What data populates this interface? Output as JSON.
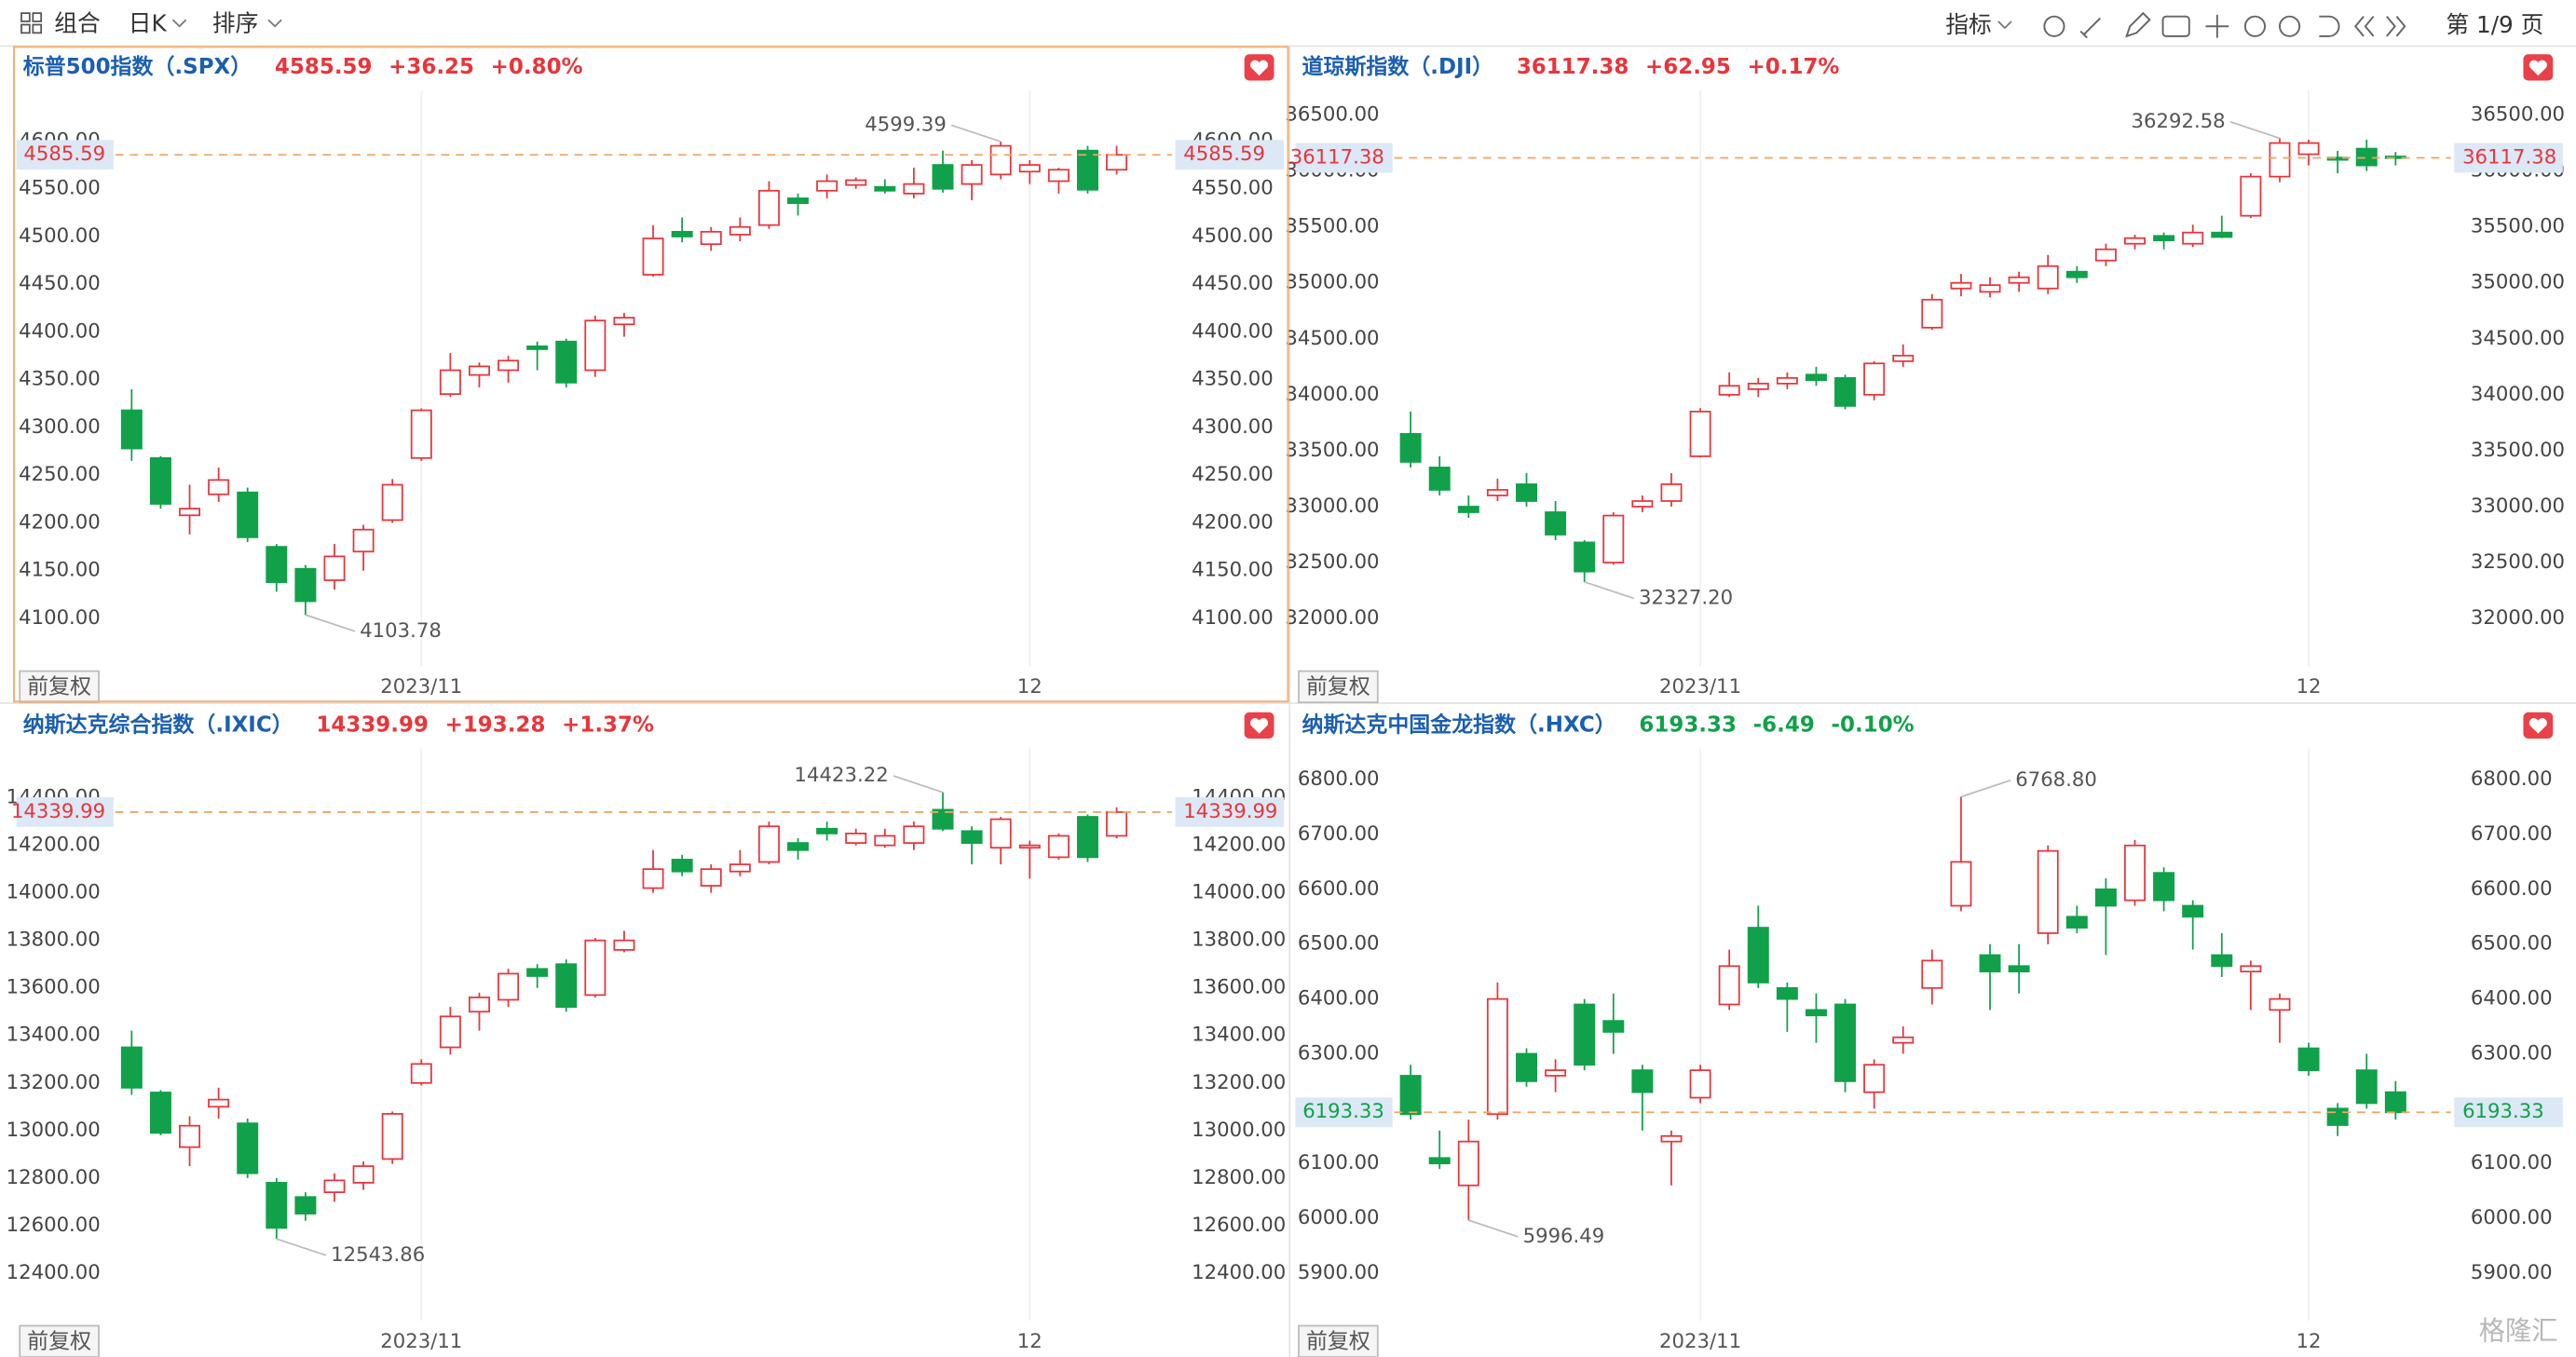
{
  "toolbar": {
    "group": "组合",
    "period": "日K",
    "sort": "排序",
    "indicator": "指标",
    "page": "第 1/9 页"
  },
  "watermark": "格隆汇",
  "chart_data": [
    {
      "type": "candlestick",
      "title": "标普500指数（.SPX）",
      "last": 4585.59,
      "change": "+36.25",
      "change_pct": "+0.80%",
      "quote_color": "#e8353b",
      "adjust": "前复权",
      "up_color": "#e8353b",
      "down_color": "#10a14a",
      "categories": [
        null,
        null,
        null,
        null,
        null,
        null,
        null,
        null,
        null,
        null,
        "2023/11",
        null,
        null,
        null,
        null,
        null,
        null,
        null,
        null,
        null,
        null,
        null,
        null,
        null,
        null,
        null,
        null,
        null,
        null,
        null,
        null,
        "12",
        null,
        null,
        null
      ],
      "open": [
        4318,
        4268,
        4208,
        4230,
        4232,
        4175,
        4152,
        4140,
        4170,
        4203,
        4268,
        4335,
        4355,
        4360,
        4385,
        4390,
        4360,
        4408,
        4460,
        4505,
        4492,
        4502,
        4512,
        4540,
        4548,
        4554,
        4552,
        4545,
        4575,
        4555,
        4565,
        4568,
        4558,
        4590,
        4570
      ],
      "high": [
        4340,
        4270,
        4240,
        4258,
        4237,
        4178,
        4156,
        4178,
        4198,
        4246,
        4320,
        4378,
        4368,
        4375,
        4390,
        4393,
        4417,
        4420,
        4512,
        4520,
        4510,
        4520,
        4558,
        4545,
        4565,
        4562,
        4560,
        4572,
        4590,
        4580,
        4599.39,
        4580,
        4572,
        4595,
        4595
      ],
      "low": [
        4265,
        4215,
        4188,
        4222,
        4180,
        4128,
        4103.78,
        4130,
        4150,
        4200,
        4265,
        4332,
        4342,
        4347,
        4360,
        4342,
        4353,
        4395,
        4458,
        4494,
        4485,
        4495,
        4508,
        4522,
        4540,
        4550,
        4545,
        4540,
        4546,
        4538,
        4560,
        4555,
        4545,
        4545,
        4565
      ],
      "close": [
        4278,
        4220,
        4215,
        4245,
        4185,
        4138,
        4118,
        4165,
        4193,
        4240,
        4318,
        4360,
        4364,
        4370,
        4382,
        4347,
        4412,
        4415,
        4498,
        4500,
        4505,
        4510,
        4548,
        4535,
        4558,
        4559,
        4548,
        4555,
        4550,
        4575,
        4595,
        4575,
        4570,
        4549,
        4585.59
      ],
      "ylim": [
        4050,
        4653
      ],
      "yticks": [
        {
          "value": 4100,
          "label": "4100.00"
        },
        {
          "value": 4150,
          "label": "4150.00"
        },
        {
          "value": 4200,
          "label": "4200.00"
        },
        {
          "value": 4250,
          "label": "4250.00"
        },
        {
          "value": 4300,
          "label": "4300.00"
        },
        {
          "value": 4350,
          "label": "4350.00"
        },
        {
          "value": 4400,
          "label": "4400.00"
        },
        {
          "value": 4450,
          "label": "4450.00"
        },
        {
          "value": 4500,
          "label": "4500.00"
        },
        {
          "value": 4550,
          "label": "4550.00"
        },
        {
          "value": 4600,
          "label": "4600.00"
        }
      ],
      "annotations": [
        {
          "value": 4599.39,
          "label": "4599.39"
        },
        {
          "value": 4103.78,
          "label": "4103.78"
        }
      ]
    },
    {
      "type": "candlestick",
      "title": "道琼斯指数（.DJI）",
      "last": 36117.38,
      "change": "+62.95",
      "change_pct": "+0.17%",
      "quote_color": "#e8353b",
      "adjust": "前复权",
      "up_color": "#e8353b",
      "down_color": "#10a14a",
      "categories": [
        null,
        null,
        null,
        null,
        null,
        null,
        null,
        null,
        null,
        null,
        "2023/11",
        null,
        null,
        null,
        null,
        null,
        null,
        null,
        null,
        null,
        null,
        null,
        null,
        null,
        null,
        null,
        null,
        null,
        null,
        null,
        null,
        "12",
        null,
        null,
        null
      ],
      "open": [
        33650,
        33350,
        33000,
        33100,
        33200,
        32950,
        32680,
        32500,
        33000,
        33050,
        33450,
        34000,
        34050,
        34100,
        34180,
        34150,
        34000,
        34300,
        34600,
        34950,
        34920,
        35000,
        34950,
        35100,
        35200,
        35350,
        35420,
        35350,
        35450,
        35600,
        35950,
        36150,
        36120,
        36200,
        36130
      ],
      "high": [
        33850,
        33450,
        33100,
        33250,
        33300,
        33050,
        32700,
        32950,
        33100,
        33300,
        33880,
        34200,
        34150,
        34200,
        34250,
        34180,
        34300,
        34450,
        34900,
        35080,
        35050,
        35100,
        35250,
        35150,
        35350,
        35430,
        35450,
        35520,
        35600,
        35980,
        36292.58,
        36280,
        36180,
        36280,
        36170
      ],
      "low": [
        33350,
        33100,
        32900,
        33050,
        33000,
        32700,
        32327.2,
        32480,
        32950,
        33000,
        33440,
        33980,
        33980,
        34050,
        34080,
        33870,
        33950,
        34250,
        34580,
        34880,
        34870,
        34920,
        34900,
        35000,
        35150,
        35300,
        35300,
        35320,
        35400,
        35580,
        35900,
        36050,
        35980,
        36000,
        36050
      ],
      "close": [
        33400,
        33150,
        32950,
        33150,
        33050,
        32750,
        32420,
        32920,
        33050,
        33200,
        33850,
        34080,
        34100,
        34150,
        34130,
        33900,
        34280,
        34350,
        34850,
        35000,
        34980,
        35050,
        35150,
        35050,
        35300,
        35400,
        35380,
        35450,
        35410,
        35950,
        36250,
        36250,
        36100,
        36050,
        36117.38
      ],
      "ylim": [
        31574,
        36720
      ],
      "yticks": [
        {
          "value": 32000,
          "label": "32000.00"
        },
        {
          "value": 32500,
          "label": "32500.00"
        },
        {
          "value": 33000,
          "label": "33000.00"
        },
        {
          "value": 33500,
          "label": "33500.00"
        },
        {
          "value": 34000,
          "label": "34000.00"
        },
        {
          "value": 34500,
          "label": "34500.00"
        },
        {
          "value": 35000,
          "label": "35000.00"
        },
        {
          "value": 35500,
          "label": "35500.00"
        },
        {
          "value": 36000,
          "label": "36000.00"
        },
        {
          "value": 36500,
          "label": "36500.00"
        }
      ],
      "annotations": [
        {
          "value": 36292.58,
          "label": "36292.58"
        },
        {
          "value": 32327.2,
          "label": "32327.20"
        }
      ]
    },
    {
      "type": "candlestick",
      "title": "纳斯达克综合指数（.IXIC）",
      "last": 14339.99,
      "change": "+193.28",
      "change_pct": "+1.37%",
      "quote_color": "#e8353b",
      "adjust": "前复权",
      "up_color": "#e8353b",
      "down_color": "#10a14a",
      "categories": [
        null,
        null,
        null,
        null,
        null,
        null,
        null,
        null,
        null,
        null,
        "2023/11",
        null,
        null,
        null,
        null,
        null,
        null,
        null,
        null,
        null,
        null,
        null,
        null,
        null,
        null,
        null,
        null,
        null,
        null,
        null,
        null,
        "12",
        null,
        null,
        null
      ],
      "open": [
        13350,
        13160,
        12930,
        13100,
        13030,
        12780,
        12720,
        12740,
        12780,
        12880,
        13200,
        13350,
        13500,
        13550,
        13680,
        13700,
        13570,
        13760,
        14020,
        14140,
        14030,
        14090,
        14130,
        14210,
        14270,
        14210,
        14200,
        14210,
        14350,
        14260,
        14190,
        14190,
        14150,
        14320,
        14240
      ],
      "high": [
        13420,
        13170,
        13060,
        13180,
        13050,
        12800,
        12740,
        12820,
        12870,
        13080,
        13300,
        13520,
        13580,
        13680,
        13700,
        13720,
        13810,
        13840,
        14180,
        14160,
        14120,
        14180,
        14300,
        14230,
        14300,
        14270,
        14270,
        14300,
        14423.22,
        14280,
        14320,
        14220,
        14250,
        14330,
        14360
      ],
      "low": [
        13150,
        12980,
        12850,
        13050,
        12800,
        12543.86,
        12620,
        12700,
        12750,
        12860,
        13190,
        13320,
        13420,
        13520,
        13600,
        13500,
        13560,
        13750,
        14000,
        14070,
        14000,
        14070,
        14120,
        14140,
        14220,
        14200,
        14190,
        14180,
        14260,
        14120,
        14120,
        14060,
        14140,
        14130,
        14230
      ],
      "close": [
        13180,
        12990,
        13020,
        13130,
        12820,
        12590,
        12650,
        12790,
        12850,
        13070,
        13280,
        13480,
        13560,
        13660,
        13650,
        13520,
        13800,
        13800,
        14100,
        14090,
        14100,
        14120,
        14280,
        14180,
        14250,
        14250,
        14240,
        14280,
        14270,
        14210,
        14310,
        14200,
        14240,
        14150,
        14339.99
      ],
      "ylim": [
        12199,
        14608
      ],
      "yticks": [
        {
          "value": 12400,
          "label": "12400.00"
        },
        {
          "value": 12600,
          "label": "12600.00"
        },
        {
          "value": 12800,
          "label": "12800.00"
        },
        {
          "value": 13000,
          "label": "13000.00"
        },
        {
          "value": 13200,
          "label": "13200.00"
        },
        {
          "value": 13400,
          "label": "13400.00"
        },
        {
          "value": 13600,
          "label": "13600.00"
        },
        {
          "value": 13800,
          "label": "13800.00"
        },
        {
          "value": 14000,
          "label": "14000.00"
        },
        {
          "value": 14200,
          "label": "14200.00"
        },
        {
          "value": 14400,
          "label": "14400.00"
        }
      ],
      "annotations": [
        {
          "value": 14423.22,
          "label": "14423.22"
        },
        {
          "value": 12543.86,
          "label": "12543.86"
        }
      ]
    },
    {
      "type": "candlestick",
      "title": "纳斯达克中国金龙指数（.HXC）",
      "last": 6193.33,
      "change": "-6.49",
      "change_pct": "-0.10%",
      "quote_color": "#10a14a",
      "adjust": "前复权",
      "up_color": "#e8353b",
      "down_color": "#10a14a",
      "categories": [
        null,
        null,
        null,
        null,
        null,
        null,
        null,
        null,
        null,
        null,
        "2023/11",
        null,
        null,
        null,
        null,
        null,
        null,
        null,
        null,
        null,
        null,
        null,
        null,
        null,
        null,
        null,
        null,
        null,
        null,
        null,
        null,
        "12",
        null,
        null,
        null
      ],
      "open": [
        6260,
        6110,
        6060,
        6190,
        6300,
        6260,
        6390,
        6360,
        6270,
        6140,
        6220,
        6390,
        6530,
        6420,
        6380,
        6390,
        6230,
        6320,
        6420,
        6570,
        6480,
        6460,
        6520,
        6550,
        6600,
        6580,
        6630,
        6570,
        6480,
        6450,
        6380,
        6310,
        6200,
        6270,
        6230
      ],
      "high": [
        6280,
        6160,
        6180,
        6430,
        6310,
        6290,
        6400,
        6410,
        6280,
        6160,
        6280,
        6490,
        6570,
        6430,
        6410,
        6400,
        6290,
        6350,
        6490,
        6768.8,
        6500,
        6500,
        6680,
        6570,
        6620,
        6690,
        6640,
        6580,
        6520,
        6470,
        6410,
        6320,
        6210,
        6300,
        6250
      ],
      "low": [
        6180,
        6090,
        5996.49,
        6180,
        6240,
        6230,
        6270,
        6300,
        6160,
        6060,
        6210,
        6380,
        6420,
        6340,
        6320,
        6230,
        6200,
        6300,
        6390,
        6560,
        6380,
        6410,
        6500,
        6520,
        6480,
        6570,
        6560,
        6490,
        6440,
        6380,
        6320,
        6260,
        6150,
        6200,
        6180
      ],
      "close": [
        6190,
        6100,
        6140,
        6400,
        6250,
        6270,
        6280,
        6340,
        6230,
        6150,
        6270,
        6460,
        6430,
        6400,
        6370,
        6250,
        6280,
        6330,
        6470,
        6650,
        6450,
        6450,
        6670,
        6530,
        6570,
        6680,
        6580,
        6550,
        6460,
        6460,
        6400,
        6270,
        6170,
        6210,
        6193.33
      ],
      "ylim": [
        5813,
        6857
      ],
      "yticks": [
        {
          "value": 5900,
          "label": "5900.00"
        },
        {
          "value": 6000,
          "label": "6000.00"
        },
        {
          "value": 6100,
          "label": "6100.00"
        },
        {
          "value": 6200,
          "label": "6200.00"
        },
        {
          "value": 6300,
          "label": "6300.00"
        },
        {
          "value": 6400,
          "label": "6400.00"
        },
        {
          "value": 6500,
          "label": "6500.00"
        },
        {
          "value": 6600,
          "label": "6600.00"
        },
        {
          "value": 6700,
          "label": "6700.00"
        },
        {
          "value": 6800,
          "label": "6800.00"
        }
      ],
      "annotations": [
        {
          "value": 6768.8,
          "label": "6768.80"
        },
        {
          "value": 5996.49,
          "label": "5996.49"
        }
      ]
    }
  ]
}
